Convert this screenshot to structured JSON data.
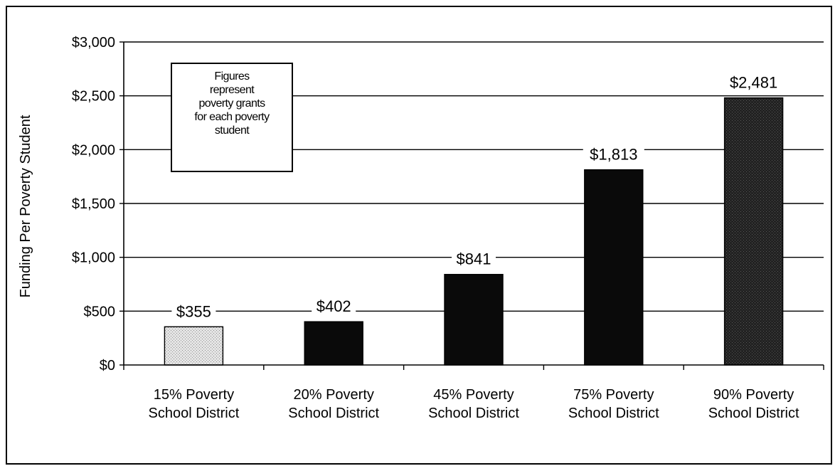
{
  "chart_data": {
    "type": "bar",
    "title": "",
    "xlabel": "",
    "ylabel": "Funding Per Poverty Student",
    "categories": [
      [
        "15% Poverty",
        "School District"
      ],
      [
        "20% Poverty",
        "School District"
      ],
      [
        "45% Poverty",
        "School District"
      ],
      [
        "75% Poverty",
        "School District"
      ],
      [
        "90% Poverty",
        "School District"
      ]
    ],
    "values": [
      355,
      402,
      841,
      1813,
      2481
    ],
    "value_labels": [
      "$355",
      "$402",
      "$841",
      "$1,813",
      "$2,481"
    ],
    "ylim": [
      0,
      3000
    ],
    "yticks": [
      0,
      500,
      1000,
      1500,
      2000,
      2500,
      3000
    ],
    "ytick_labels": [
      "$0",
      "$500",
      "$1,000",
      "$1,500",
      "$2,000",
      "$2,500",
      "$3,000"
    ],
    "grid": true,
    "bar_styles": [
      "light-stipple",
      "solid-dark",
      "solid-dark",
      "solid-dark",
      "dark-stipple"
    ],
    "annotation": {
      "lines": [
        "Figures",
        "represent",
        "poverty grants",
        "for each poverty",
        "student"
      ]
    },
    "colors": {
      "light_bar": "#d6d6d6",
      "dark_bar": "#0a0a0a",
      "stipple_dark": "#2a2a2a",
      "axis": "#000000"
    }
  }
}
